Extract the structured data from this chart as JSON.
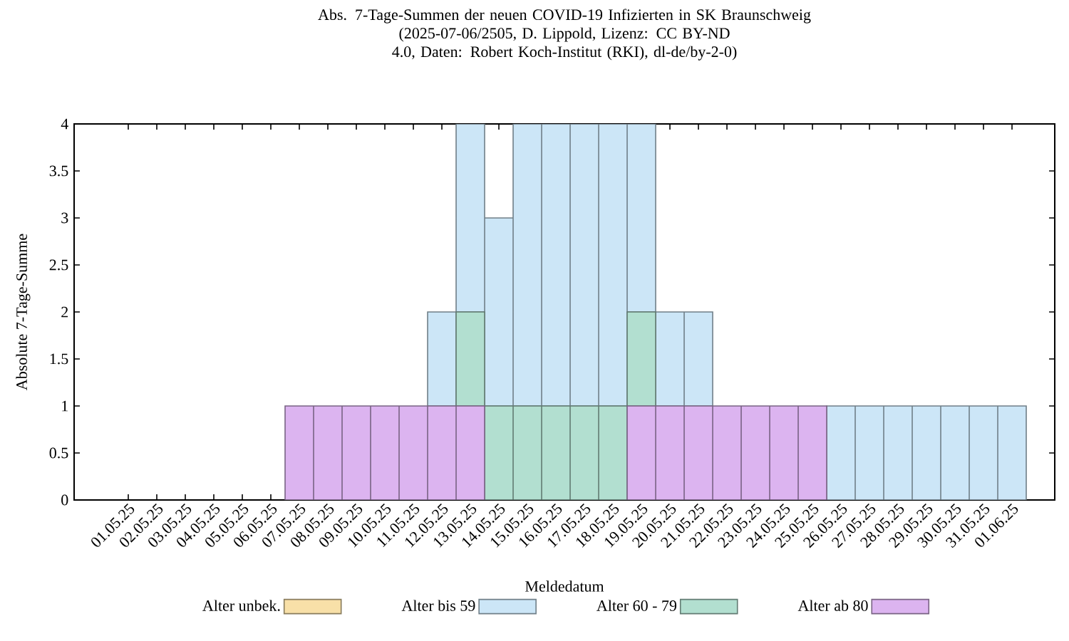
{
  "chart_data": {
    "type": "bar",
    "stacked": true,
    "title": "Abs. 7-Tage-Summen der neuen COVID-19 Infizierten in SK Braunschweig",
    "subtitle": "(2025-07-06/2505, D. Lippold, Lizenz: CC BY-ND 4.0, Daten: Robert Koch-Institut (RKI), dl-de/by-2-0)",
    "xlabel": "Meldedatum",
    "ylabel": "Absolute 7-Tage-Summe",
    "categories": [
      "01.05.25",
      "02.05.25",
      "03.05.25",
      "04.05.25",
      "05.05.25",
      "06.05.25",
      "07.05.25",
      "08.05.25",
      "09.05.25",
      "10.05.25",
      "11.05.25",
      "12.05.25",
      "13.05.25",
      "14.05.25",
      "15.05.25",
      "16.05.25",
      "17.05.25",
      "18.05.25",
      "19.05.25",
      "20.05.25",
      "21.05.25",
      "22.05.25",
      "23.05.25",
      "24.05.25",
      "25.05.25",
      "26.05.25",
      "27.05.25",
      "28.05.25",
      "29.05.25",
      "30.05.25",
      "31.05.25",
      "01.06.25"
    ],
    "series": [
      {
        "name": "Alter ab 80",
        "color": "#dcb4f0",
        "values": [
          0,
          0,
          0,
          0,
          0,
          0,
          1,
          1,
          1,
          1,
          1,
          1,
          1,
          0,
          0,
          0,
          0,
          0,
          1,
          1,
          1,
          1,
          1,
          1,
          1,
          0,
          0,
          0,
          0,
          0,
          0,
          0
        ]
      },
      {
        "name": "Alter 60 - 79",
        "color": "#b2dfd0",
        "values": [
          0,
          0,
          0,
          0,
          0,
          0,
          0,
          0,
          0,
          0,
          0,
          0,
          1,
          1,
          1,
          1,
          1,
          1,
          1,
          0,
          0,
          0,
          0,
          0,
          0,
          0,
          0,
          0,
          0,
          0,
          0,
          0
        ]
      },
      {
        "name": "Alter bis 59",
        "color": "#cce6f7",
        "values": [
          0,
          0,
          0,
          0,
          0,
          0,
          0,
          0,
          0,
          0,
          0,
          1,
          2,
          2,
          3,
          3,
          3,
          3,
          2,
          1,
          1,
          0,
          0,
          0,
          0,
          1,
          1,
          1,
          1,
          1,
          1,
          1
        ]
      },
      {
        "name": "Alter unbek.",
        "color": "#f8e0a8",
        "values": [
          0,
          0,
          0,
          0,
          0,
          0,
          0,
          0,
          0,
          0,
          0,
          0,
          0,
          0,
          0,
          0,
          0,
          0,
          0,
          0,
          0,
          0,
          0,
          0,
          0,
          0,
          0,
          0,
          0,
          0,
          0,
          0
        ]
      }
    ],
    "ylim": [
      0,
      4
    ],
    "yticks": [
      0,
      0.5,
      1,
      1.5,
      2,
      2.5,
      3,
      3.5,
      4
    ],
    "grid": false,
    "legend": "bottom"
  }
}
